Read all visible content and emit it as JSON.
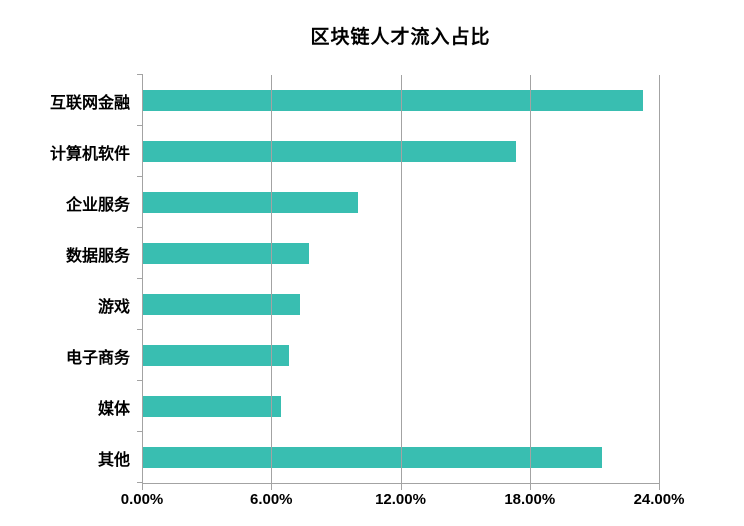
{
  "page": {
    "background": "#FFFFFF"
  },
  "chart_data": {
    "type": "bar",
    "orientation": "horizontal",
    "title": "区块链人才流入占比",
    "categories": [
      "互联网金融",
      "计算机软件",
      "企业服务",
      "数据服务",
      "游戏",
      "电子商务",
      "媒体",
      "其他"
    ],
    "values": [
      23.2,
      17.3,
      10.0,
      7.7,
      7.3,
      6.8,
      6.4,
      21.3
    ],
    "unit": "%",
    "xlabel": "",
    "ylabel": "",
    "xlim": [
      0,
      24
    ],
    "x_ticks": [
      0,
      6,
      12,
      18,
      24
    ],
    "x_tick_labels": [
      "0.00%",
      "6.00%",
      "12.00%",
      "18.00%",
      "24.00%"
    ],
    "grid": "vertical-gridlines",
    "legend": "none",
    "bar_color": "#39BEB1",
    "axis_color": "#A3A3A3",
    "text_color": "#000000"
  }
}
